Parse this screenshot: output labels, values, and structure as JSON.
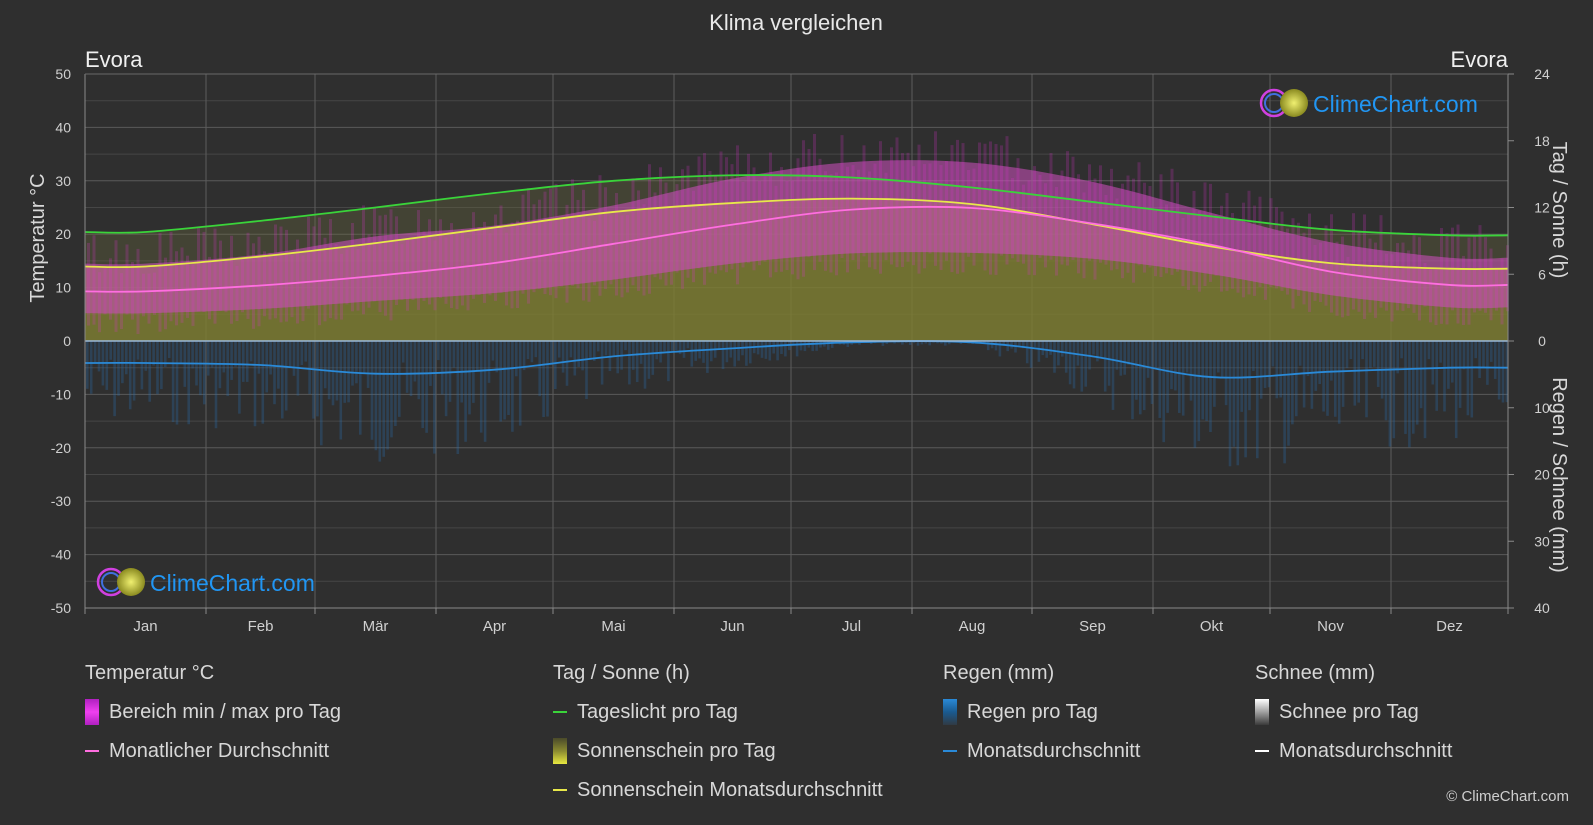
{
  "title": "Klima vergleichen",
  "location_left": "Evora",
  "location_right": "Evora",
  "axis_left_label": "Temperatur °C",
  "axis_right_top_label": "Tag / Sonne (h)",
  "axis_right_bottom_label": "Regen / Schnee (mm)",
  "watermark": "ClimeChart.com",
  "copyright": "© ClimeChart.com",
  "colors": {
    "background": "#2f2f2f",
    "daylight": "#3ad43a",
    "sunshine_avg": "#e8e84a",
    "temp_avg": "#ff6ee0",
    "temp_range": "#e020d0",
    "rain": "#2a8ad8",
    "snow": "#ffffff",
    "brand": "#2196f3"
  },
  "legend": {
    "temperature": {
      "header": "Temperatur °C",
      "range_label": "Bereich min / max pro Tag",
      "avg_label": "Monatlicher Durchschnitt"
    },
    "sun": {
      "header": "Tag / Sonne (h)",
      "daylight_label": "Tageslicht pro Tag",
      "sunshine_label": "Sonnenschein pro Tag",
      "sunshine_avg_label": "Sonnenschein Monatsdurchschnitt"
    },
    "rain": {
      "header": "Regen (mm)",
      "rain_label": "Regen pro Tag",
      "avg_label": "Monatsdurchschnitt"
    },
    "snow": {
      "header": "Schnee (mm)",
      "snow_label": "Schnee pro Tag",
      "avg_label": "Monatsdurchschnitt"
    }
  },
  "chart_data": {
    "type": "line",
    "categories": [
      "Jan",
      "Feb",
      "Mär",
      "Apr",
      "Mai",
      "Jun",
      "Jul",
      "Aug",
      "Sep",
      "Okt",
      "Nov",
      "Dez"
    ],
    "left_axis": {
      "min": -50,
      "max": 50,
      "ticks": [
        50,
        40,
        30,
        20,
        10,
        0,
        -10,
        -20,
        -30,
        -40,
        -50
      ]
    },
    "right_axis_sun": {
      "min": 0,
      "max": 24,
      "ticks": [
        24,
        18,
        12,
        6,
        0
      ]
    },
    "right_axis_rain": {
      "min": 0,
      "max": 40,
      "ticks": [
        0,
        10,
        20,
        30,
        40
      ]
    },
    "grid": true,
    "series": [
      {
        "name": "Tageslicht pro Tag",
        "unit": "h",
        "values": [
          9.8,
          10.8,
          12.0,
          13.3,
          14.4,
          14.9,
          14.7,
          13.8,
          12.5,
          11.2,
          10.0,
          9.5
        ]
      },
      {
        "name": "Sonnenschein Monatsdurchschnitt",
        "unit": "h",
        "values": [
          6.7,
          7.6,
          8.8,
          10.2,
          11.6,
          12.4,
          12.8,
          12.3,
          10.5,
          8.5,
          7.0,
          6.5
        ]
      },
      {
        "name": "Monatlicher Durchschnitt",
        "unit": "°C",
        "values": [
          9.3,
          10.4,
          12.2,
          14.6,
          18.2,
          21.8,
          24.6,
          24.9,
          22.0,
          18.0,
          13.0,
          10.5
        ]
      },
      {
        "name": "Tagesmaximum",
        "unit": "°C",
        "values": [
          14.5,
          16.2,
          19.6,
          21.6,
          25.4,
          30.4,
          33.5,
          33.4,
          29.8,
          24.0,
          18.5,
          15.6
        ]
      },
      {
        "name": "Tagesminimum",
        "unit": "°C",
        "values": [
          5.2,
          6.0,
          7.5,
          9.0,
          11.5,
          14.5,
          16.4,
          16.5,
          15.4,
          12.5,
          8.6,
          6.3
        ]
      },
      {
        "name": "Regen Monatsdurchschnitt",
        "unit": "mm",
        "values": [
          3.3,
          3.6,
          4.9,
          4.3,
          2.3,
          1.1,
          0.2,
          0.2,
          2.3,
          5.4,
          4.6,
          4.0
        ]
      },
      {
        "name": "Schnee Monatsdurchschnitt",
        "unit": "mm",
        "values": [
          0,
          0,
          0,
          0,
          0,
          0,
          0,
          0,
          0,
          0,
          0,
          0
        ]
      }
    ]
  }
}
